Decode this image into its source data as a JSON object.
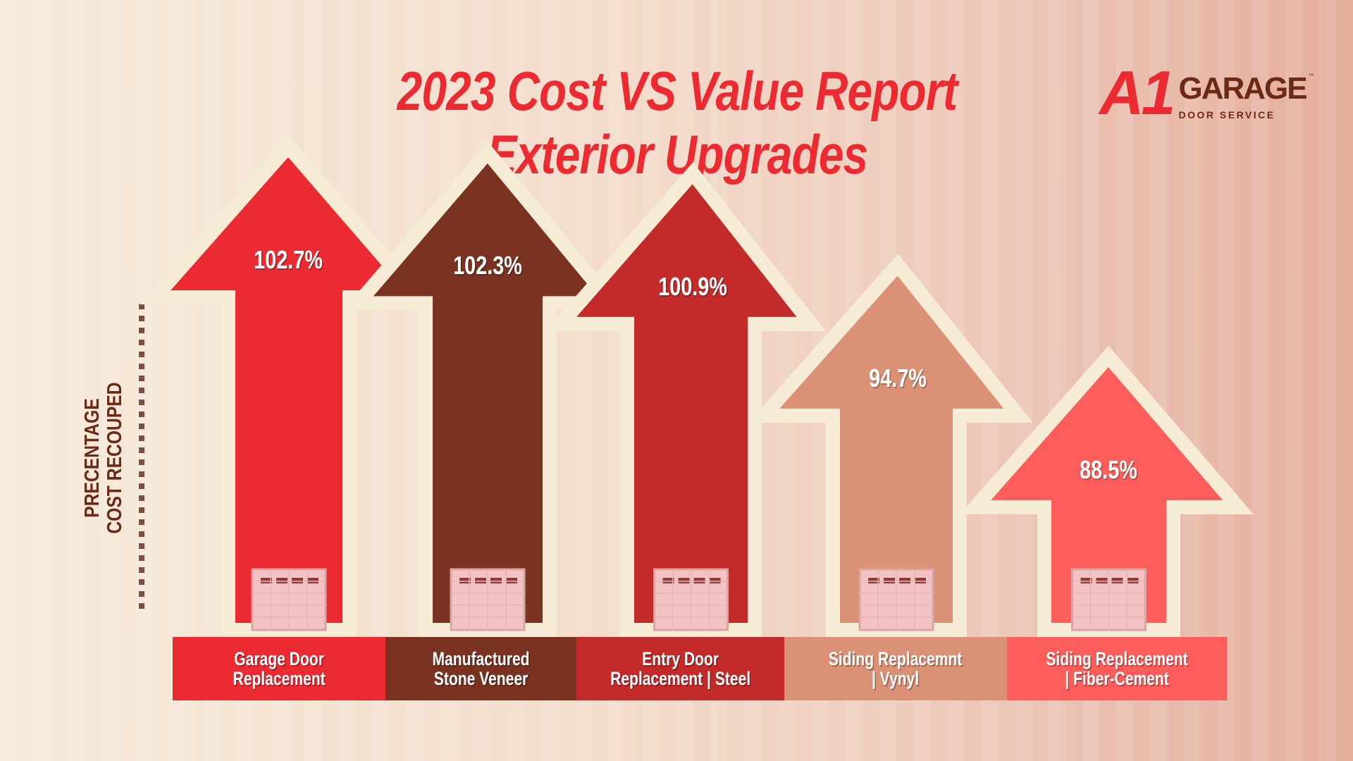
{
  "title_line1": "2023 Cost VS Value Report",
  "title_line2": "Exterior Upgrades",
  "logo": {
    "mark": "A1",
    "name": "GARAGE",
    "tagline": "DOOR SERVICE",
    "tm": "™"
  },
  "chart_data": {
    "type": "bar",
    "title": "2023 Cost VS Value Report Exterior Upgrades",
    "ylabel_line1": "PRECENTAGE",
    "ylabel_line2": "COST RECOUPED",
    "categories": [
      "Garage Door\nReplacement",
      "Manufactured\nStone Veneer",
      "Entry Door\nReplacement | Steel",
      "Siding Replacemnt\n| Vynyl",
      "Siding Replacement\n| Fiber-Cement"
    ],
    "values": [
      102.7,
      102.3,
      100.9,
      94.7,
      88.5
    ],
    "value_labels": [
      "102.7%",
      "102.3%",
      "100.9%",
      "94.7%",
      "88.5%"
    ],
    "colors": [
      "#EC2A31",
      "#7B3321",
      "#C32B2B",
      "#DB9175",
      "#FE5E5B"
    ],
    "outline_color": "#F6EBD5"
  }
}
